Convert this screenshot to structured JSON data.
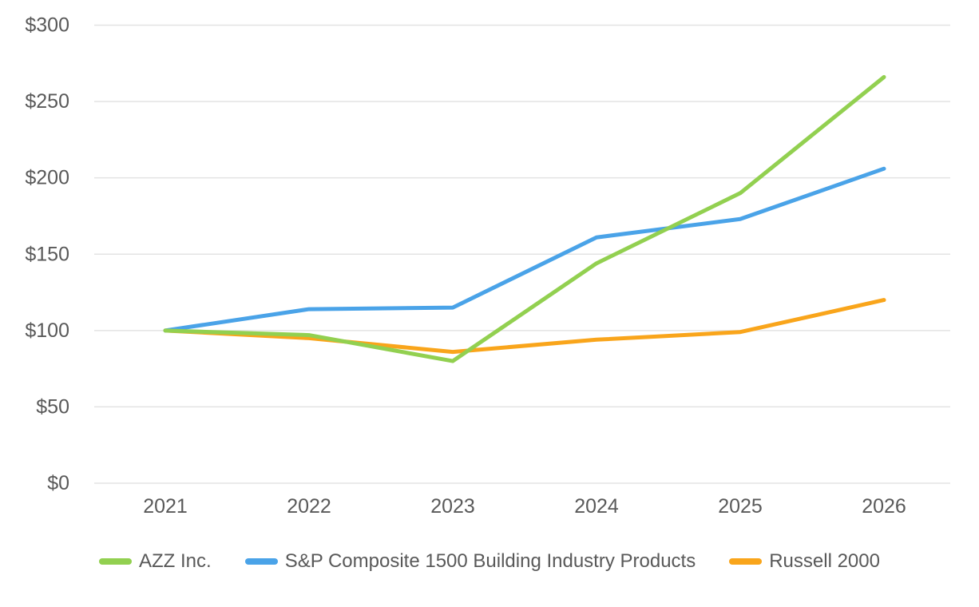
{
  "chart_data": {
    "type": "line",
    "title": "",
    "description": "Indexed stock price performance comparison, value of $100 invested, fiscal years 2021-2026",
    "x": [
      "2021",
      "2022",
      "2023",
      "2024",
      "2025",
      "2026"
    ],
    "xlabel": "",
    "ylabel": "",
    "ylim": [
      0,
      300
    ],
    "y_tick_step": 50,
    "y_tick_labels": [
      "$0",
      "$50",
      "$100",
      "$150",
      "$200",
      "$250",
      "$300"
    ],
    "grid": "horizontal",
    "legend_position": "bottom",
    "series": [
      {
        "name": "AZZ Inc.",
        "color": "#92D050",
        "values": [
          100,
          97,
          80,
          144,
          190,
          266
        ]
      },
      {
        "name": "S&P Composite 1500 Building Industry Products",
        "color": "#4AA3E8",
        "values": [
          100,
          114,
          115,
          161,
          173,
          206
        ]
      },
      {
        "name": "Russell 2000",
        "color": "#F9A51B",
        "values": [
          100,
          95,
          86,
          94,
          99,
          120
        ]
      }
    ],
    "colors": {
      "grid_line": "#E3E3E3",
      "axis_text": "#595959",
      "background": "#FFFFFF"
    }
  }
}
